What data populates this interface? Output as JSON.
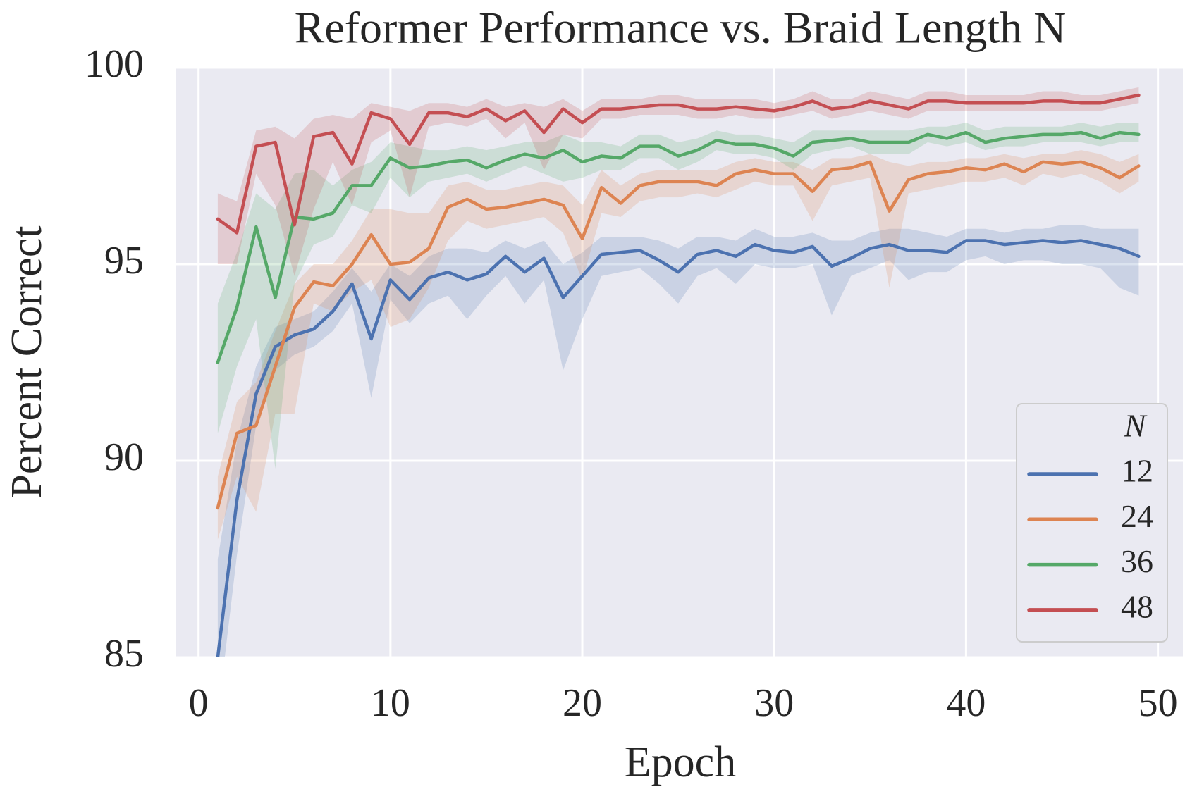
{
  "chart_data": {
    "type": "line",
    "title": "Reformer Performance vs. Braid Length N",
    "xlabel": "Epoch",
    "ylabel": "Percent Correct",
    "legend_title": "N",
    "legend": "lower right",
    "grid": true,
    "xlim": [
      -1.2,
      51.3
    ],
    "ylim": [
      85,
      100
    ],
    "xticks": [
      0,
      10,
      20,
      30,
      40,
      50
    ],
    "yticks": [
      85,
      90,
      95,
      100
    ],
    "x": [
      1,
      2,
      3,
      4,
      5,
      6,
      7,
      8,
      9,
      10,
      11,
      12,
      13,
      14,
      15,
      16,
      17,
      18,
      19,
      20,
      21,
      22,
      23,
      24,
      25,
      26,
      27,
      28,
      29,
      30,
      31,
      32,
      33,
      34,
      35,
      36,
      37,
      38,
      39,
      40,
      41,
      42,
      43,
      44,
      45,
      46,
      47,
      48,
      49
    ],
    "series": [
      {
        "name": "12",
        "color": "#4c72b0",
        "values": [
          85.0,
          89.0,
          91.7,
          92.9,
          93.2,
          93.35,
          93.8,
          94.5,
          93.1,
          94.6,
          94.1,
          94.65,
          94.8,
          94.6,
          94.75,
          95.2,
          94.8,
          95.15,
          94.15,
          94.7,
          95.25,
          95.3,
          95.35,
          95.1,
          94.8,
          95.25,
          95.35,
          95.2,
          95.5,
          95.35,
          95.3,
          95.45,
          94.95,
          95.15,
          95.4,
          95.5,
          95.35,
          95.35,
          95.3,
          95.6,
          95.6,
          95.5,
          95.55,
          95.6,
          95.55,
          95.6,
          95.5,
          95.4,
          95.2
        ],
        "lower": [
          83.5,
          87.6,
          90.9,
          92.3,
          92.7,
          92.9,
          93.3,
          94.0,
          91.6,
          94.1,
          93.5,
          94.0,
          94.2,
          93.6,
          94.2,
          94.7,
          94.0,
          94.6,
          92.3,
          93.6,
          94.7,
          94.8,
          94.9,
          94.5,
          94.0,
          94.7,
          94.9,
          94.5,
          95.0,
          94.9,
          94.9,
          95.0,
          93.7,
          94.7,
          94.9,
          95.1,
          94.6,
          94.8,
          94.8,
          95.1,
          95.2,
          95.0,
          95.1,
          95.1,
          95.0,
          95.0,
          94.9,
          94.4,
          94.2
        ],
        "upper": [
          87.5,
          90.5,
          92.4,
          93.4,
          93.6,
          93.8,
          94.3,
          94.9,
          94.3,
          95.0,
          94.7,
          95.2,
          95.4,
          95.4,
          95.3,
          95.6,
          95.4,
          95.6,
          95.0,
          95.3,
          95.7,
          95.7,
          95.7,
          95.6,
          95.4,
          95.7,
          95.7,
          95.6,
          95.9,
          95.7,
          95.7,
          95.8,
          95.6,
          95.6,
          95.8,
          95.9,
          95.9,
          95.8,
          95.7,
          95.9,
          95.9,
          95.8,
          95.9,
          95.9,
          96.0,
          96.0,
          95.9,
          95.9,
          95.9
        ]
      },
      {
        "name": "24",
        "color": "#dd8452",
        "values": [
          88.8,
          90.7,
          90.9,
          92.4,
          93.9,
          94.55,
          94.45,
          95.0,
          95.75,
          95.0,
          95.05,
          95.4,
          96.45,
          96.65,
          96.4,
          96.45,
          96.55,
          96.65,
          96.5,
          95.65,
          96.95,
          96.55,
          97.0,
          97.1,
          97.1,
          97.1,
          97.0,
          97.3,
          97.4,
          97.3,
          97.3,
          96.85,
          97.4,
          97.45,
          97.6,
          96.35,
          97.15,
          97.3,
          97.35,
          97.45,
          97.4,
          97.55,
          97.35,
          97.6,
          97.55,
          97.6,
          97.45,
          97.2,
          97.5
        ],
        "lower": [
          88.0,
          89.6,
          88.7,
          91.2,
          91.2,
          94.0,
          93.8,
          94.3,
          94.6,
          93.4,
          93.6,
          94.4,
          95.6,
          96.1,
          95.9,
          96.0,
          96.1,
          96.2,
          95.8,
          94.6,
          96.3,
          96.2,
          96.6,
          96.7,
          96.7,
          96.8,
          96.7,
          96.9,
          97.1,
          97.0,
          97.0,
          96.1,
          97.0,
          97.1,
          97.2,
          94.4,
          96.8,
          96.9,
          97.0,
          97.1,
          97.1,
          97.2,
          97.0,
          97.3,
          97.2,
          97.3,
          97.1,
          96.8,
          97.1
        ],
        "upper": [
          89.6,
          91.5,
          92.0,
          93.3,
          94.5,
          95.0,
          95.0,
          95.6,
          96.4,
          96.4,
          96.3,
          96.3,
          97.0,
          97.1,
          96.9,
          96.9,
          97.0,
          97.1,
          97.0,
          96.5,
          97.4,
          97.0,
          97.3,
          97.4,
          97.4,
          97.4,
          97.4,
          97.6,
          97.7,
          97.6,
          97.6,
          97.4,
          97.7,
          97.7,
          97.8,
          97.6,
          97.5,
          97.6,
          97.6,
          97.7,
          97.7,
          97.8,
          97.7,
          97.8,
          97.8,
          97.9,
          97.8,
          97.6,
          97.8
        ]
      },
      {
        "name": "36",
        "color": "#55a868",
        "values": [
          92.5,
          93.9,
          95.95,
          94.15,
          96.2,
          96.15,
          96.3,
          97.0,
          97.0,
          97.7,
          97.45,
          97.5,
          97.6,
          97.65,
          97.45,
          97.65,
          97.8,
          97.7,
          97.9,
          97.6,
          97.75,
          97.7,
          98.0,
          98.0,
          97.75,
          97.9,
          98.15,
          98.05,
          98.05,
          97.95,
          97.75,
          98.1,
          98.15,
          98.2,
          98.1,
          98.1,
          98.1,
          98.3,
          98.2,
          98.35,
          98.1,
          98.2,
          98.25,
          98.3,
          98.3,
          98.35,
          98.2,
          98.35,
          98.3
        ],
        "lower": [
          90.7,
          92.4,
          93.6,
          89.8,
          94.5,
          95.5,
          95.7,
          96.5,
          96.3,
          97.2,
          96.7,
          97.1,
          97.2,
          97.3,
          97.1,
          97.3,
          97.5,
          97.3,
          97.1,
          97.2,
          97.4,
          97.4,
          97.7,
          97.7,
          97.4,
          97.6,
          97.9,
          97.8,
          97.8,
          97.7,
          97.4,
          97.8,
          97.9,
          98.0,
          97.8,
          97.8,
          97.8,
          98.1,
          98.0,
          98.1,
          97.9,
          98.0,
          98.0,
          98.1,
          98.1,
          98.1,
          98.0,
          98.1,
          98.1
        ],
        "upper": [
          94.0,
          95.3,
          96.8,
          96.4,
          97.3,
          97.4,
          97.0,
          97.4,
          97.6,
          98.1,
          98.0,
          97.9,
          97.9,
          98.0,
          97.9,
          98.0,
          98.1,
          98.1,
          98.3,
          98.1,
          98.1,
          98.0,
          98.3,
          98.3,
          98.1,
          98.2,
          98.4,
          98.3,
          98.3,
          98.2,
          98.1,
          98.4,
          98.4,
          98.4,
          98.4,
          98.4,
          98.4,
          98.5,
          98.5,
          98.6,
          98.4,
          98.5,
          98.5,
          98.5,
          98.5,
          98.6,
          98.5,
          98.6,
          98.6
        ]
      },
      {
        "name": "48",
        "color": "#c44e52",
        "values": [
          96.15,
          95.8,
          98.0,
          98.1,
          96.0,
          98.25,
          98.35,
          97.55,
          98.85,
          98.7,
          98.05,
          98.85,
          98.85,
          98.75,
          98.95,
          98.65,
          98.9,
          98.35,
          98.95,
          98.6,
          98.95,
          98.95,
          99.0,
          99.05,
          99.05,
          98.95,
          98.95,
          99.0,
          98.95,
          98.9,
          99.0,
          99.15,
          98.95,
          99.0,
          99.15,
          99.05,
          98.95,
          99.15,
          99.15,
          99.1,
          99.1,
          99.1,
          99.1,
          99.15,
          99.15,
          99.1,
          99.1,
          99.2,
          99.3
        ],
        "lower": [
          95.0,
          95.0,
          97.3,
          96.5,
          94.7,
          96.4,
          97.6,
          96.5,
          98.1,
          98.4,
          96.7,
          98.5,
          98.6,
          98.5,
          98.7,
          98.2,
          98.6,
          97.4,
          98.3,
          98.2,
          98.7,
          98.7,
          98.8,
          98.8,
          98.8,
          98.7,
          98.7,
          98.8,
          98.7,
          98.7,
          98.8,
          98.9,
          98.7,
          98.8,
          98.9,
          98.8,
          98.7,
          98.9,
          98.9,
          98.9,
          98.9,
          98.9,
          98.9,
          98.9,
          98.9,
          98.9,
          98.9,
          99.0,
          99.1
        ],
        "upper": [
          96.8,
          96.6,
          98.4,
          98.5,
          98.2,
          98.7,
          98.8,
          98.7,
          99.1,
          99.0,
          98.9,
          99.1,
          99.1,
          99.0,
          99.2,
          99.0,
          99.1,
          99.0,
          99.2,
          98.9,
          99.2,
          99.2,
          99.2,
          99.3,
          99.3,
          99.2,
          99.2,
          99.2,
          99.2,
          99.1,
          99.2,
          99.4,
          99.2,
          99.2,
          99.4,
          99.3,
          99.2,
          99.4,
          99.4,
          99.3,
          99.3,
          99.3,
          99.3,
          99.4,
          99.4,
          99.3,
          99.3,
          99.4,
          99.5
        ]
      }
    ]
  }
}
